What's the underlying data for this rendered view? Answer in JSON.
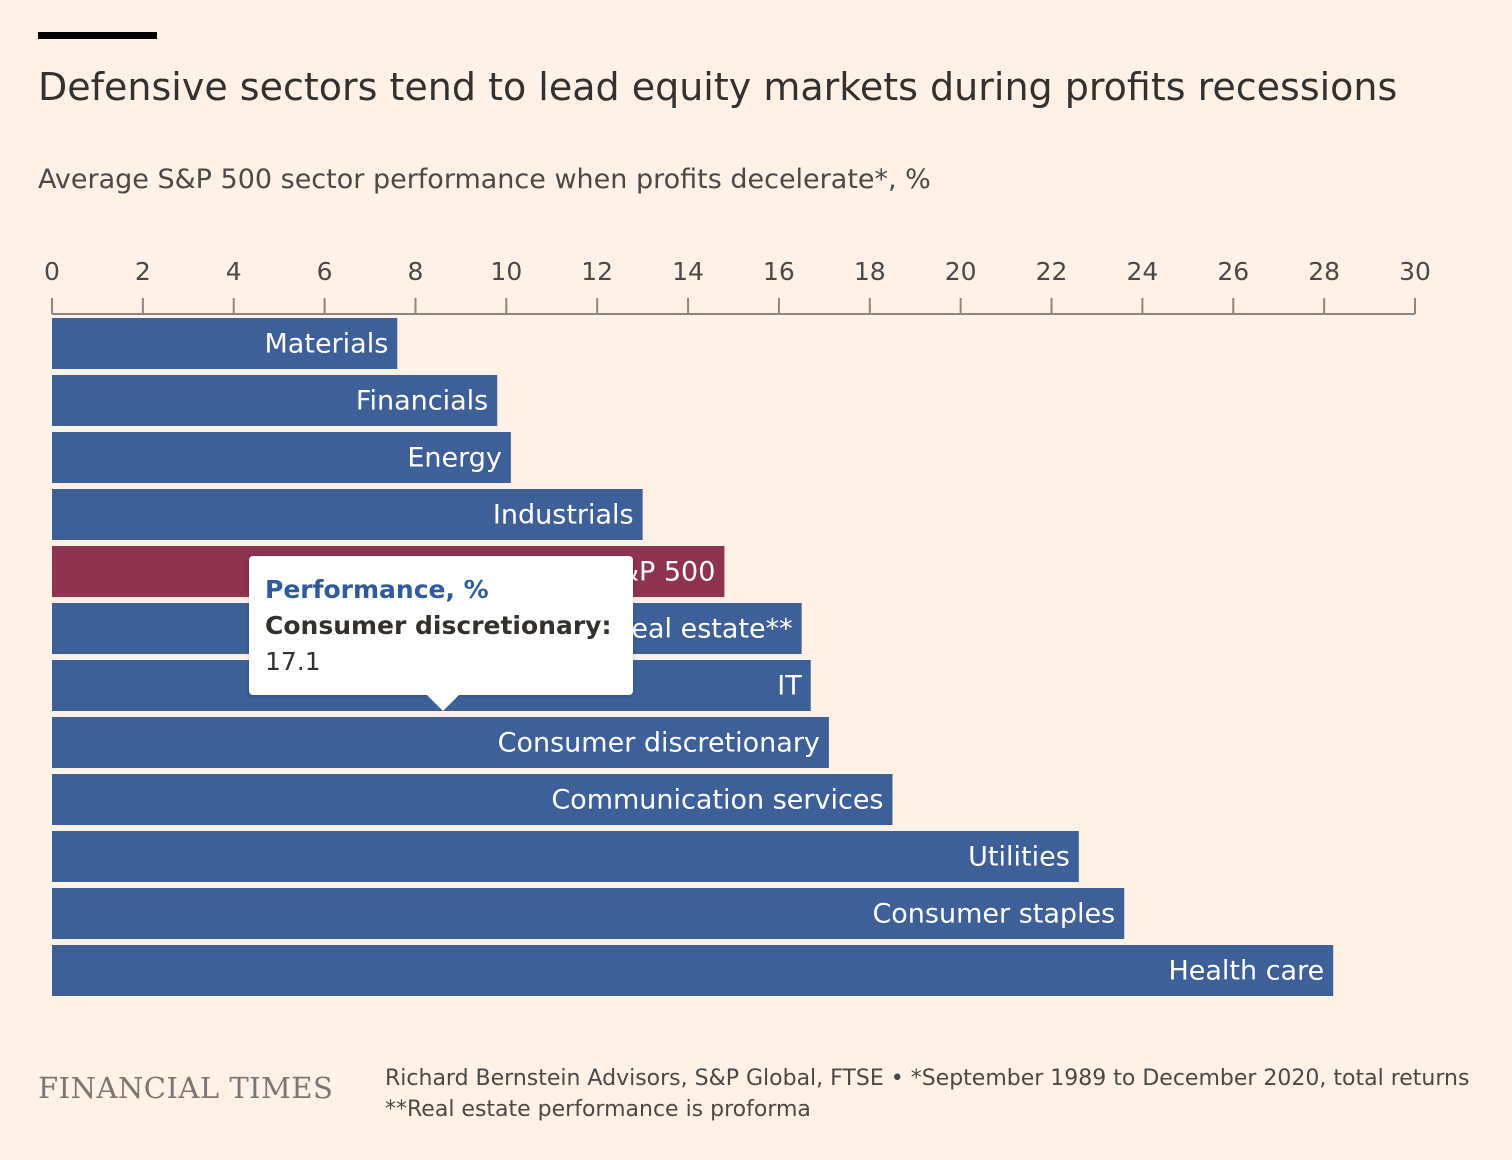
{
  "header": {
    "title": "Defensive sectors tend to lead equity markets during profits recessions",
    "subtitle": "Average S&P 500 sector performance when profits decelerate*, %"
  },
  "colors": {
    "background": "#fff1e5",
    "bar": "#3d6099",
    "highlight": "#8f3450",
    "axis": "#8c8580",
    "bar_label": "#ffffff"
  },
  "chart_data": {
    "type": "bar",
    "orientation": "horizontal",
    "categories": [
      "Materials",
      "Financials",
      "Energy",
      "Industrials",
      "S&P 500",
      "Real estate**",
      "IT",
      "Consumer discretionary",
      "Communication services",
      "Utilities",
      "Consumer staples",
      "Health care"
    ],
    "series": [
      {
        "name": "Performance, %",
        "values": [
          7.6,
          9.8,
          10.1,
          13.0,
          14.8,
          16.5,
          16.7,
          17.1,
          18.5,
          22.6,
          23.6,
          28.2
        ]
      }
    ],
    "highlight": "S&P 500",
    "xlim": [
      0,
      30
    ],
    "xticks": [
      0,
      2,
      4,
      6,
      8,
      10,
      12,
      14,
      16,
      18,
      20,
      22,
      24,
      26,
      28,
      30
    ],
    "axis_position": "top",
    "grid": false,
    "labels_inside_bars": true
  },
  "tooltip": {
    "title": "Performance, %",
    "label": "Consumer discretionary:",
    "value": "17.1"
  },
  "footer": {
    "brand": "FINANCIAL TIMES",
    "source_line1": "Richard Bernstein Advisors, S&P Global, FTSE • *September 1989 to December 2020, total returns",
    "source_line2": "**Real estate performance is proforma"
  }
}
